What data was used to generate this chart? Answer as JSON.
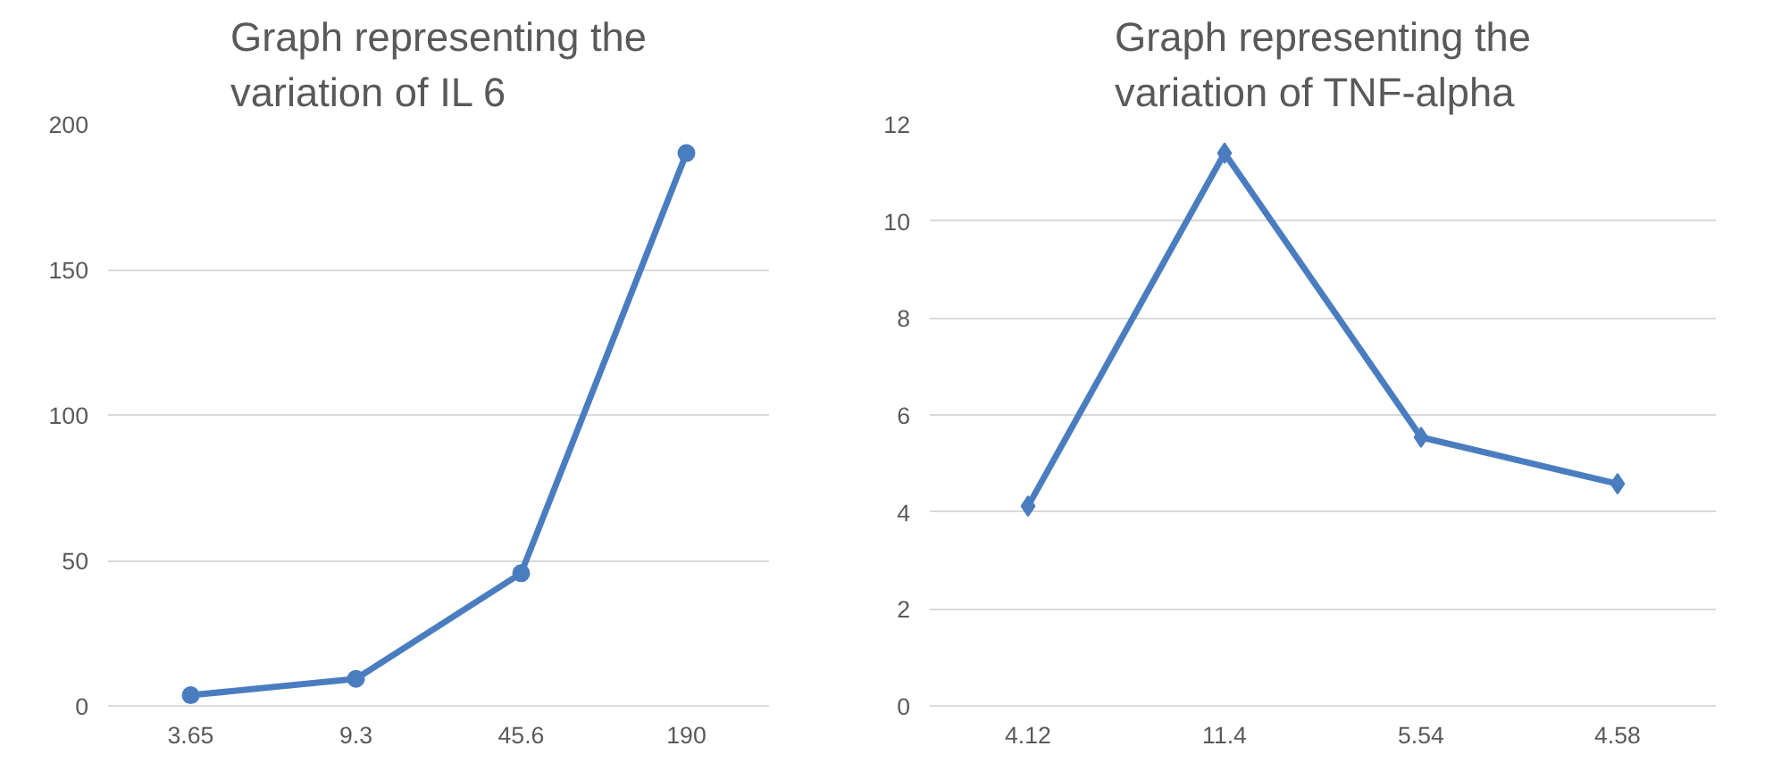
{
  "chart_data": [
    {
      "type": "line",
      "title": "Graph representing the\nvariation of IL 6",
      "categories": [
        "3.65",
        "9.3",
        "45.6",
        "190"
      ],
      "series": [
        {
          "color": "#4a7dbf",
          "values": [
            3.65,
            9.3,
            45.6,
            190
          ]
        }
      ],
      "ylim": [
        0,
        200
      ],
      "yticks": [
        0,
        50,
        100,
        150,
        200
      ],
      "grid": "y",
      "marker": "circle",
      "line_style": "solid"
    },
    {
      "type": "line",
      "title": "Graph representing the\nvariation of TNF-alpha",
      "categories": [
        "4.12",
        "11.4",
        "5.54",
        "4.58"
      ],
      "series": [
        {
          "color": "#4a7dbf",
          "values": [
            4.12,
            11.4,
            5.54,
            4.58
          ]
        }
      ],
      "ylim": [
        0,
        12
      ],
      "yticks": [
        0,
        2,
        4,
        6,
        8,
        10,
        12
      ],
      "grid": "y",
      "marker": "diamond",
      "line_style": "solid"
    }
  ]
}
